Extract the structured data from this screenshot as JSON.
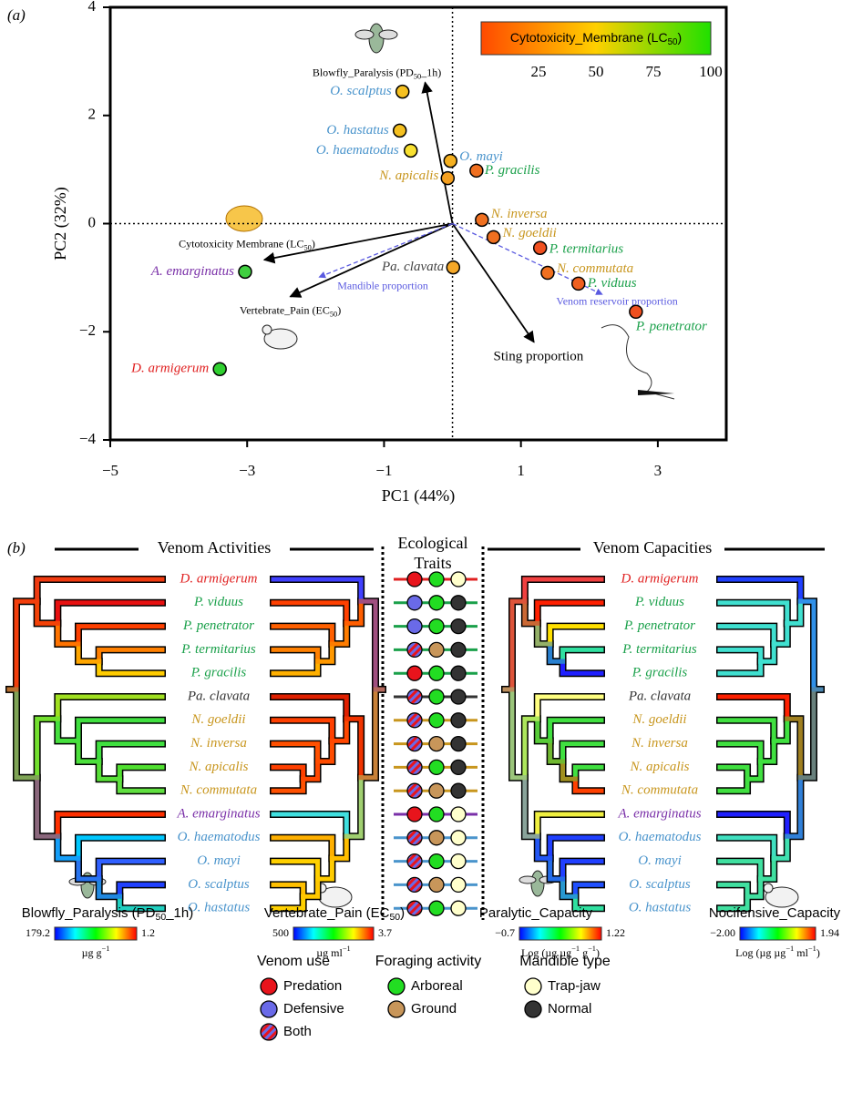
{
  "chart_data": {
    "type": "scatter",
    "panel_label": "(a)",
    "xlabel": "PC1 (44%)",
    "ylabel": "PC2 (32%)",
    "xlim": [
      -5,
      4
    ],
    "ylim": [
      -4,
      4
    ],
    "xticks": [
      {
        "value": -5,
        "label": "−5"
      },
      {
        "value": -3,
        "label": "−3"
      },
      {
        "value": -1,
        "label": "−1"
      },
      1,
      3
    ],
    "yticks": [
      {
        "value": -4,
        "label": "−4"
      },
      {
        "value": -2,
        "label": "−2"
      },
      0,
      2,
      4
    ],
    "zero_lines": true,
    "labels": [
      "O. scalptus",
      "O. hastatus",
      "O. haematodus",
      "O. mayi",
      "N. apicalis",
      "P. gracilis",
      "N. inversa",
      "N. goeldii",
      "P. termitarius",
      "Pa. clavata",
      "N. commutata",
      "P. viduus",
      "P. penetrator",
      "A. emarginatus",
      "D. armigerum"
    ],
    "x": [
      -0.73,
      -0.77,
      -0.61,
      -0.03,
      -0.07,
      0.35,
      0.43,
      0.6,
      1.28,
      0.01,
      1.39,
      1.84,
      2.68,
      -3.03,
      -3.4
    ],
    "y": [
      2.44,
      1.72,
      1.35,
      1.16,
      0.84,
      0.98,
      0.07,
      -0.25,
      -0.45,
      -0.81,
      -0.91,
      -1.11,
      -1.63,
      -0.89,
      -2.69
    ],
    "point_colors": [
      "#f5c020",
      "#f5c020",
      "#f8e030",
      "#f5b020",
      "#f5a020",
      "#f07020",
      "#f07020",
      "#f07020",
      "#f05020",
      "#f5a828",
      "#f07020",
      "#f06020",
      "#f05020",
      "#40d040",
      "#30d030"
    ],
    "label_colors": [
      "#4a94cc",
      "#4a94cc",
      "#4a94cc",
      "#4a94cc",
      "#c8961e",
      "#1aa04a",
      "#c8961e",
      "#c8961e",
      "#1aa04a",
      "#444444",
      "#c8961e",
      "#1aa04a",
      "#1aa04a",
      "#7a30a8",
      "#e02020"
    ],
    "colorbar": {
      "title_parts": [
        {
          "text": "Cytotoxicity_Membrane (LC"
        },
        {
          "text": "50",
          "sub": true
        },
        {
          "text": ")"
        }
      ],
      "lim": [
        0,
        100
      ],
      "ticks": [
        25,
        50,
        75,
        100
      ],
      "colors": [
        "#ff4a00",
        "#ffd000",
        "#20e000"
      ]
    },
    "loadings": [
      {
        "label_parts": [
          {
            "text": "Blowfly_Paralysis (PD"
          },
          {
            "text": "50",
            "sub": true
          },
          {
            "text": "_1h)"
          }
        ],
        "x": -0.4,
        "y": 2.61,
        "color": "#000000",
        "dashed": false
      },
      {
        "label_parts": [
          {
            "text": "Cytotoxicity Membrane (LC"
          },
          {
            "text": "50",
            "sub": true
          },
          {
            "text": ")"
          }
        ],
        "x": -2.75,
        "y": -0.67,
        "color": "#000000",
        "dashed": false
      },
      {
        "label_parts": [
          {
            "text": "Vertebrate_Pain (EC"
          },
          {
            "text": "50",
            "sub": true
          },
          {
            "text": ")"
          }
        ],
        "x": -2.37,
        "y": -1.35,
        "color": "#000000",
        "dashed": false
      },
      {
        "label_parts": [
          {
            "text": "Sting proportion"
          }
        ],
        "x": 1.19,
        "y": -2.19,
        "color": "#000000",
        "dashed": false
      },
      {
        "label_parts": [
          {
            "text": "Mandible proportion"
          }
        ],
        "x": -1.95,
        "y": -0.99,
        "color": "#5a5ae0",
        "dashed": true
      },
      {
        "label_parts": [
          {
            "text": "Venom reservoir proportion"
          }
        ],
        "x": 2.19,
        "y": -1.31,
        "color": "#5a5ae0",
        "dashed": true
      }
    ]
  },
  "panel_b": {
    "panel_label": "(b)",
    "headings": {
      "activities": "Venom Activities",
      "traits": [
        "Ecological",
        "Traits"
      ],
      "capacities": "Venom Capacities"
    },
    "species": [
      {
        "name": "D. armigerum",
        "color": "#e02020",
        "venom_use": "Predation",
        "foraging": "Arboreal",
        "mandible": "Trap-jaw"
      },
      {
        "name": "P. viduus",
        "color": "#1aa04a",
        "venom_use": "Defensive",
        "foraging": "Arboreal",
        "mandible": "Normal"
      },
      {
        "name": "P. penetrator",
        "color": "#1aa04a",
        "venom_use": "Defensive",
        "foraging": "Arboreal",
        "mandible": "Normal"
      },
      {
        "name": "P. termitarius",
        "color": "#1aa04a",
        "venom_use": "Both",
        "foraging": "Ground",
        "mandible": "Normal"
      },
      {
        "name": "P. gracilis",
        "color": "#1aa04a",
        "venom_use": "Predation",
        "foraging": "Arboreal",
        "mandible": "Normal"
      },
      {
        "name": "Pa. clavata",
        "color": "#333333",
        "venom_use": "Both",
        "foraging": "Arboreal",
        "mandible": "Normal"
      },
      {
        "name": "N. goeldii",
        "color": "#c8961e",
        "venom_use": "Both",
        "foraging": "Arboreal",
        "mandible": "Normal"
      },
      {
        "name": "N. inversa",
        "color": "#c8961e",
        "venom_use": "Both",
        "foraging": "Ground",
        "mandible": "Normal"
      },
      {
        "name": "N. apicalis",
        "color": "#c8961e",
        "venom_use": "Both",
        "foraging": "Arboreal",
        "mandible": "Normal"
      },
      {
        "name": "N. commutata",
        "color": "#c8961e",
        "venom_use": "Both",
        "foraging": "Ground",
        "mandible": "Normal"
      },
      {
        "name": "A. emarginatus",
        "color": "#7a30a8",
        "venom_use": "Predation",
        "foraging": "Arboreal",
        "mandible": "Trap-jaw"
      },
      {
        "name": "O. haematodus",
        "color": "#4a94cc",
        "venom_use": "Both",
        "foraging": "Ground",
        "mandible": "Trap-jaw"
      },
      {
        "name": "O. mayi",
        "color": "#4a94cc",
        "venom_use": "Both",
        "foraging": "Arboreal",
        "mandible": "Trap-jaw"
      },
      {
        "name": "O. scalptus",
        "color": "#4a94cc",
        "venom_use": "Both",
        "foraging": "Ground",
        "mandible": "Trap-jaw"
      },
      {
        "name": "O. hastatus",
        "color": "#4a94cc",
        "venom_use": "Both",
        "foraging": "Arboreal",
        "mandible": "Trap-jaw"
      }
    ],
    "colormap": [
      "#0000ff",
      "#00ffff",
      "#00ff00",
      "#ffff00",
      "#ff0000"
    ],
    "colorbars": [
      {
        "title_parts": [
          {
            "text": "Blowfly_Paralysis (PD"
          },
          {
            "text": "50",
            "sub": true
          },
          {
            "text": "_1h)"
          }
        ],
        "ends": [
          179.2,
          1.2
        ],
        "unit_parts": [
          {
            "text": "µg g"
          },
          {
            "text": "−1",
            "sup": true
          }
        ]
      },
      {
        "title_parts": [
          {
            "text": "Vertebrate_Pain (EC"
          },
          {
            "text": "50",
            "sub": true
          },
          {
            "text": ")"
          }
        ],
        "ends": [
          500,
          3.7
        ],
        "unit_parts": [
          {
            "text": "µg ml"
          },
          {
            "text": "−1",
            "sup": true
          }
        ]
      },
      {
        "title_parts": [
          {
            "text": "Paralytic_Capacity"
          }
        ],
        "ends": [
          {
            "value": -0.7,
            "label": "−0.7"
          },
          1.22
        ],
        "unit_parts": [
          {
            "text": "Log (µg µg"
          },
          {
            "text": "−1",
            "sup": true
          },
          {
            "text": " g"
          },
          {
            "text": "−1",
            "sup": true
          },
          {
            "text": ")"
          }
        ]
      },
      {
        "title_parts": [
          {
            "text": "Nocifensive_Capacity"
          }
        ],
        "ends": [
          {
            "value": -2,
            "label": "−2.00"
          },
          1.94
        ],
        "unit_parts": [
          {
            "text": "Log (µg µg"
          },
          {
            "text": "−1",
            "sup": true
          },
          {
            "text": " ml"
          },
          {
            "text": "−1",
            "sup": true
          },
          {
            "text": ")"
          }
        ]
      }
    ],
    "legend": [
      {
        "title": "Venom use",
        "key": "venom_use",
        "items": [
          {
            "name": "Predation",
            "colors": [
              "#e8141c"
            ]
          },
          {
            "name": "Defensive",
            "colors": [
              "#6a6ae8"
            ]
          },
          {
            "name": "Both",
            "colors": [
              "#e8141c",
              "#6a6ae8"
            ]
          }
        ]
      },
      {
        "title": "Foraging activity",
        "key": "foraging",
        "items": [
          {
            "name": "Arboreal",
            "colors": [
              "#22dd22"
            ]
          },
          {
            "name": "Ground",
            "colors": [
              "#c8965a"
            ]
          }
        ]
      },
      {
        "title": "Mandible type",
        "key": "mandible",
        "items": [
          {
            "name": "Trap-jaw",
            "colors": [
              "#ffffcc"
            ]
          },
          {
            "name": "Normal",
            "colors": [
              "#333333"
            ]
          }
        ]
      }
    ]
  }
}
